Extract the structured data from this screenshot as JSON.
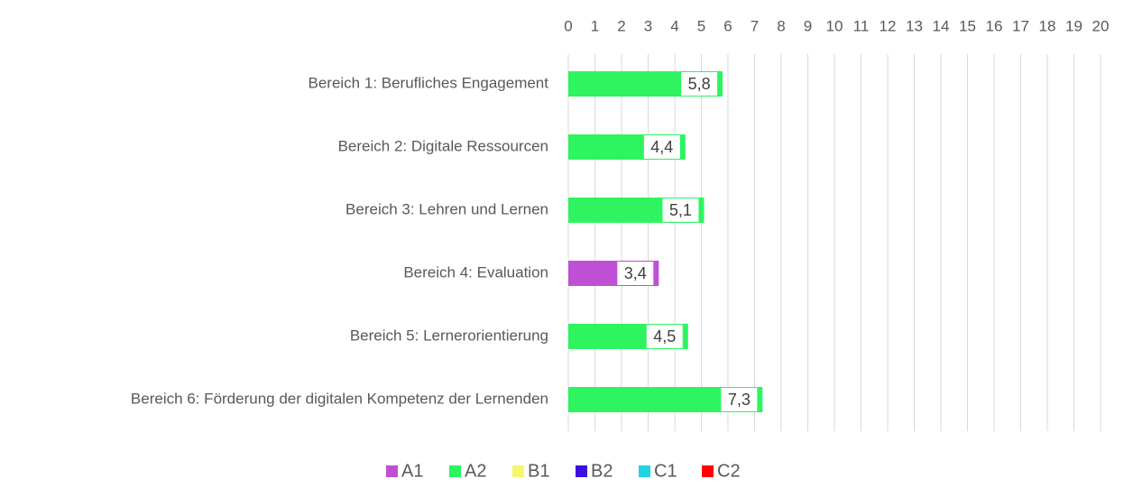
{
  "chart_data": {
    "type": "bar",
    "orientation": "horizontal",
    "categories": [
      "Bereich 1: Berufliches Engagement",
      "Bereich 2: Digitale Ressourcen",
      "Bereich 3: Lehren und Lernen",
      "Bereich 4: Evaluation",
      "Bereich 5: Lernerorientierung",
      "Bereich 6: Förderung der digitalen Kompetenz der Lernenden"
    ],
    "series": [
      {
        "name": "A1",
        "color": "#bf4fd4",
        "values": [
          null,
          null,
          null,
          3.4,
          null,
          null
        ],
        "value_labels": [
          null,
          null,
          null,
          "3,4",
          null,
          null
        ]
      },
      {
        "name": "A2",
        "color": "#2df45f",
        "values": [
          5.8,
          4.4,
          5.1,
          null,
          4.5,
          7.3
        ],
        "value_labels": [
          "5,8",
          "4,4",
          "5,1",
          null,
          "4,5",
          "7,3"
        ]
      },
      {
        "name": "B1",
        "color": "#f6f56b",
        "values": [
          null,
          null,
          null,
          null,
          null,
          null
        ]
      },
      {
        "name": "B2",
        "color": "#3b10e0",
        "values": [
          null,
          null,
          null,
          null,
          null,
          null
        ]
      },
      {
        "name": "C1",
        "color": "#22d4e2",
        "values": [
          null,
          null,
          null,
          null,
          null,
          null
        ]
      },
      {
        "name": "C2",
        "color": "#ff0000",
        "values": [
          null,
          null,
          null,
          null,
          null,
          null
        ]
      }
    ],
    "xlim": [
      0,
      20
    ],
    "xticks": [
      0,
      1,
      2,
      3,
      4,
      5,
      6,
      7,
      8,
      9,
      10,
      11,
      12,
      13,
      14,
      15,
      16,
      17,
      18,
      19,
      20
    ],
    "grid": true,
    "legend": "bottom"
  }
}
